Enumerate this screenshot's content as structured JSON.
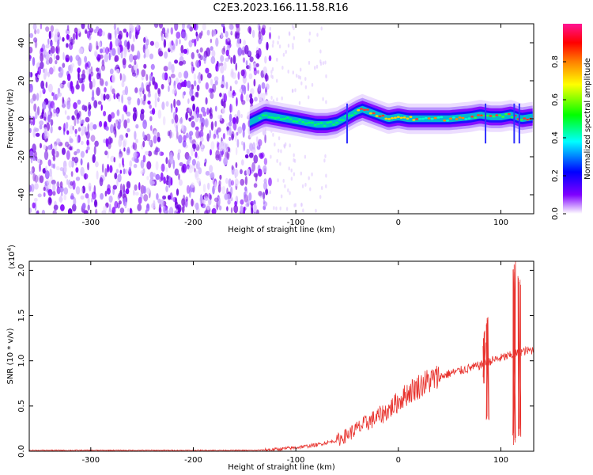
{
  "figure_title": "C2E3.2023.166.11.58.R16",
  "chart_data": [
    {
      "type": "heatmap",
      "xlabel": "Height of straight line (km)",
      "ylabel": "Frequency (Hz)",
      "xlim": [
        -360,
        132
      ],
      "ylim": [
        -50,
        50
      ],
      "x_ticks": [
        -300,
        -200,
        -100,
        0,
        100
      ],
      "x_tick_labels": [
        "-300",
        "-200",
        "-100",
        "0",
        "100"
      ],
      "y_ticks": [
        -40,
        -20,
        0,
        20,
        40
      ],
      "y_tick_labels": [
        "-40",
        "-20",
        "0",
        "20",
        "40"
      ],
      "colorbar": {
        "label": "Normalized spectral amplitude",
        "range": [
          0,
          1
        ],
        "ticks": [
          0.0,
          0.2,
          0.4,
          0.6,
          0.8
        ],
        "tick_labels": [
          "0.0",
          "0.2",
          "0.4",
          "0.6",
          "0.8"
        ],
        "colors": [
          "#ffffff",
          "#d9b3ff",
          "#7f00ff",
          "#0000ff",
          "#00ffff",
          "#00ff00",
          "#ffff00",
          "#ff8000",
          "#ff0000",
          "#ff1493"
        ]
      },
      "noise_region_x": [
        -360,
        -125
      ],
      "ridge": {
        "x": [
          -145,
          -130,
          -120,
          -110,
          -100,
          -90,
          -80,
          -70,
          -60,
          -50,
          -40,
          -35,
          -30,
          -20,
          -10,
          0,
          10,
          30,
          50,
          70,
          80,
          90,
          100,
          110,
          120,
          132
        ],
        "frequency_hz": [
          -2,
          2,
          1,
          0,
          -1,
          -2,
          -3,
          -3,
          -2,
          1,
          4,
          5,
          4,
          2,
          0,
          1,
          0,
          0,
          0,
          1,
          2,
          1,
          1,
          2,
          0,
          1
        ]
      },
      "grid": false
    },
    {
      "type": "line",
      "xlabel": "Height of straight line (km)",
      "ylabel": "SNR (10 * v/v)",
      "y_multiplier_label": "(x10",
      "y_multiplier_exp": "4",
      "y_multiplier_close": ")",
      "xlim": [
        -360,
        132
      ],
      "ylim": [
        0,
        2.1
      ],
      "x_ticks": [
        -300,
        -200,
        -100,
        0,
        100
      ],
      "x_tick_labels": [
        "-300",
        "-200",
        "-100",
        "0",
        "100"
      ],
      "y_ticks": [
        0,
        0.5,
        1.0,
        1.5,
        2.0
      ],
      "y_tick_labels": [
        "0.0",
        "0.5",
        "1.0",
        "1.5",
        "2.0"
      ],
      "series": [
        {
          "color": "#e8332e",
          "x": [
            -360,
            -300,
            -200,
            -140,
            -120,
            -100,
            -80,
            -60,
            -50,
            -40,
            -30,
            -20,
            -10,
            0,
            10,
            20,
            30,
            40,
            50,
            60,
            70,
            80,
            85,
            90,
            100,
            110,
            112,
            115,
            120,
            132
          ],
          "y": [
            0.01,
            0.01,
            0.01,
            0.01,
            0.02,
            0.04,
            0.07,
            0.12,
            0.18,
            0.25,
            0.32,
            0.38,
            0.45,
            0.55,
            0.65,
            0.72,
            0.78,
            0.82,
            0.86,
            0.89,
            0.92,
            0.95,
            0.97,
            1.0,
            1.03,
            1.06,
            1.06,
            1.08,
            1.1,
            1.12
          ],
          "spikes": [
            {
              "x": 84,
              "low": 0.72,
              "high": 1.35
            },
            {
              "x": 87,
              "low": 0.3,
              "high": 1.55
            },
            {
              "x": 113,
              "low": 0.05,
              "high": 2.15
            },
            {
              "x": 118,
              "low": 0.1,
              "high": 1.97
            }
          ]
        }
      ],
      "grid": false
    }
  ]
}
